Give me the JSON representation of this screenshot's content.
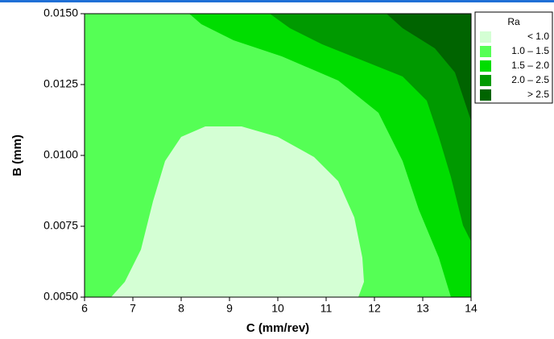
{
  "chart_data": {
    "type": "contour",
    "x_label": "C (mm/rev)",
    "y_label": "B (mm)",
    "xlim": [
      6,
      14
    ],
    "xticks": [
      6,
      7,
      8,
      9,
      10,
      11,
      12,
      13,
      14
    ],
    "ylim": [
      0.005,
      0.015
    ],
    "yticks": [
      {
        "value": 0.005,
        "label": "0.0050"
      },
      {
        "value": 0.0075,
        "label": "0.0075"
      },
      {
        "value": 0.01,
        "label": "0.0100"
      },
      {
        "value": 0.0125,
        "label": "0.0125"
      },
      {
        "value": 0.015,
        "label": "0.0150"
      }
    ],
    "legend_title": "Ra",
    "series": [
      {
        "name": "< 1.0",
        "color": "#d4ffd4"
      },
      {
        "name": "1.0 – 1.5",
        "color": "#55ff55"
      },
      {
        "name": "1.5 – 2.0",
        "color": "#00dd00"
      },
      {
        "name": "2.0 – 2.5",
        "color": "#009a00"
      },
      {
        "name": "> 2.5",
        "color": "#006400"
      }
    ]
  }
}
